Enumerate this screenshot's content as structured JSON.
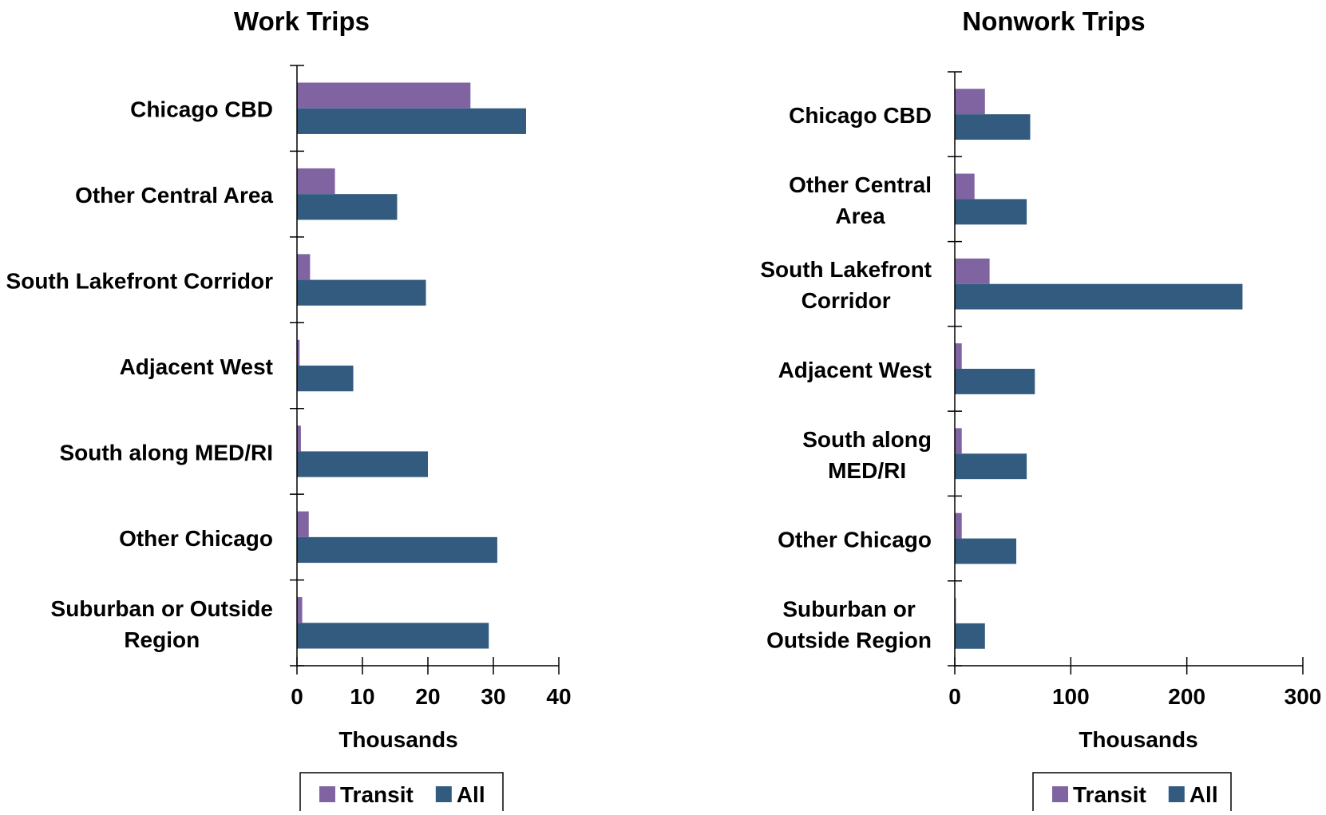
{
  "colors": {
    "transit": "#8064a2",
    "all": "#335b80",
    "axis": "#000000",
    "text": "#000000"
  },
  "chart_data": [
    {
      "type": "bar",
      "orientation": "horizontal",
      "title": "Work Trips",
      "xlabel": "Thousands",
      "ylabel": "",
      "xlim": [
        0,
        40
      ],
      "xticks": [
        "0",
        "10",
        "20",
        "30",
        "40"
      ],
      "xtick_values": [
        0,
        10,
        20,
        30,
        40
      ],
      "grid": false,
      "legend_position": "bottom",
      "categories": [
        [
          "Chicago CBD"
        ],
        [
          "Other Central Area"
        ],
        [
          "South Lakefront Corridor"
        ],
        [
          "Adjacent West"
        ],
        [
          "South along MED/RI"
        ],
        [
          "Other Chicago"
        ],
        [
          "Suburban or Outside",
          "Region"
        ]
      ],
      "series": [
        {
          "name": "Transit",
          "color": "#8064a2",
          "values": [
            26.5,
            5.8,
            2.0,
            0.4,
            0.6,
            1.8,
            0.8
          ]
        },
        {
          "name": "All",
          "color": "#335b80",
          "values": [
            35.0,
            15.3,
            19.7,
            8.6,
            20.0,
            30.6,
            29.3
          ]
        }
      ]
    },
    {
      "type": "bar",
      "orientation": "horizontal",
      "title": "Nonwork Trips",
      "xlabel": "Thousands",
      "ylabel": "",
      "xlim": [
        0,
        300
      ],
      "xticks": [
        "0",
        "100",
        "200",
        "300"
      ],
      "xtick_values": [
        0,
        100,
        200,
        300
      ],
      "grid": false,
      "legend_position": "bottom",
      "categories": [
        [
          "Chicago CBD"
        ],
        [
          "Other Central",
          "Area"
        ],
        [
          "South Lakefront",
          "Corridor"
        ],
        [
          "Adjacent West"
        ],
        [
          "South along",
          "MED/RI"
        ],
        [
          "Other Chicago"
        ],
        [
          "Suburban or",
          "Outside Region"
        ]
      ],
      "series": [
        {
          "name": "Transit",
          "color": "#8064a2",
          "values": [
            26,
            17,
            30,
            6,
            6,
            6,
            1
          ]
        },
        {
          "name": "All",
          "color": "#335b80",
          "values": [
            65,
            62,
            248,
            69,
            62,
            53,
            26
          ]
        }
      ]
    }
  ]
}
